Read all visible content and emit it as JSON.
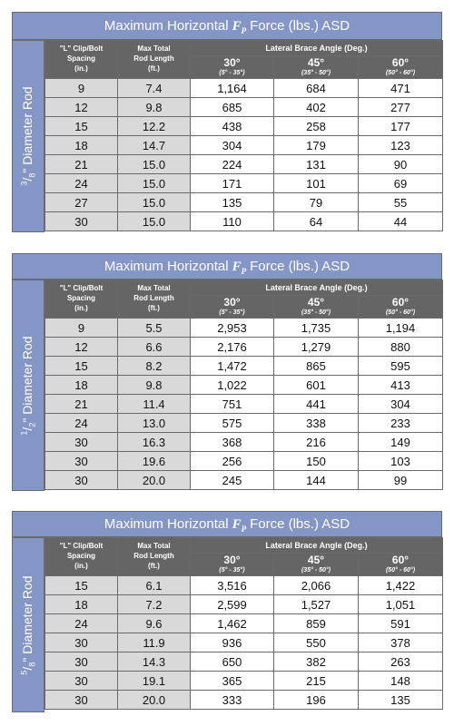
{
  "tables": [
    {
      "title_prefix": "Maximum Horizontal",
      "force_symbol": "F",
      "force_subscript": "P",
      "title_suffix": "Force (lbs.) ASD",
      "diameter_num": "3",
      "diameter_den": "8",
      "diameter_label": "\" Diameter Rod",
      "headers": {
        "spacing": [
          "\"L\" Clip/Bolt",
          "Spacing",
          "(in.)"
        ],
        "rod_length": [
          "Max Total",
          "Rod Length",
          "(ft.)"
        ],
        "lateral": "Lateral Brace Angle (Deg.)",
        "angles": [
          {
            "deg": "30°",
            "range": "(5° - 35°)"
          },
          {
            "deg": "45°",
            "range": "(35° - 50°)"
          },
          {
            "deg": "60°",
            "range": "(50° - 60°)"
          }
        ]
      },
      "rows": [
        [
          "9",
          "7.4",
          "1,164",
          "684",
          "471"
        ],
        [
          "12",
          "9.8",
          "685",
          "402",
          "277"
        ],
        [
          "15",
          "12.2",
          "438",
          "258",
          "177"
        ],
        [
          "18",
          "14.7",
          "304",
          "179",
          "123"
        ],
        [
          "21",
          "15.0",
          "224",
          "131",
          "90"
        ],
        [
          "24",
          "15.0",
          "171",
          "101",
          "69"
        ],
        [
          "27",
          "15.0",
          "135",
          "79",
          "55"
        ],
        [
          "30",
          "15.0",
          "110",
          "64",
          "44"
        ]
      ]
    },
    {
      "title_prefix": "Maximum Horizontal",
      "force_symbol": "F",
      "force_subscript": "P",
      "title_suffix": "Force (lbs.) ASD",
      "diameter_num": "1",
      "diameter_den": "2",
      "diameter_label": "\" Diameter Rod",
      "headers": {
        "spacing": [
          "\"L\" Clip/Bolt",
          "Spacing",
          "(in.)"
        ],
        "rod_length": [
          "Max Total",
          "Rod Length",
          "(ft.)"
        ],
        "lateral": "Lateral Brace Angle (Deg.)",
        "angles": [
          {
            "deg": "30°",
            "range": "(5° - 35°)"
          },
          {
            "deg": "45°",
            "range": "(35° - 50°)"
          },
          {
            "deg": "60°",
            "range": "(50° - 60°)"
          }
        ]
      },
      "rows": [
        [
          "9",
          "5.5",
          "2,953",
          "1,735",
          "1,194"
        ],
        [
          "12",
          "6.6",
          "2,176",
          "1,279",
          "880"
        ],
        [
          "15",
          "8.2",
          "1,472",
          "865",
          "595"
        ],
        [
          "18",
          "9.8",
          "1,022",
          "601",
          "413"
        ],
        [
          "21",
          "11.4",
          "751",
          "441",
          "304"
        ],
        [
          "24",
          "13.0",
          "575",
          "338",
          "233"
        ],
        [
          "30",
          "16.3",
          "368",
          "216",
          "149"
        ],
        [
          "30",
          "19.6",
          "256",
          "150",
          "103"
        ],
        [
          "30",
          "20.0",
          "245",
          "144",
          "99"
        ]
      ]
    },
    {
      "title_prefix": "Maximum Horizontal",
      "force_symbol": "F",
      "force_subscript": "P",
      "title_suffix": "Force (lbs.) ASD",
      "diameter_num": "5",
      "diameter_den": "8",
      "diameter_label": "\" Diameter Rod",
      "headers": {
        "spacing": [
          "\"L\" Clip/Bolt",
          "Spacing",
          "(in.)"
        ],
        "rod_length": [
          "Max Total",
          "Rod Length",
          "(ft.)"
        ],
        "lateral": "Lateral Brace Angle (Deg.)",
        "angles": [
          {
            "deg": "30°",
            "range": "(5° - 35°)"
          },
          {
            "deg": "45°",
            "range": "(35° - 50°)"
          },
          {
            "deg": "60°",
            "range": "(50° - 60°)"
          }
        ]
      },
      "rows": [
        [
          "15",
          "6.1",
          "3,516",
          "2,066",
          "1,422"
        ],
        [
          "18",
          "7.2",
          "2,599",
          "1,527",
          "1,051"
        ],
        [
          "24",
          "9.6",
          "1,462",
          "859",
          "591"
        ],
        [
          "30",
          "11.9",
          "936",
          "550",
          "378"
        ],
        [
          "30",
          "14.3",
          "650",
          "382",
          "263"
        ],
        [
          "30",
          "19.1",
          "365",
          "215",
          "148"
        ],
        [
          "30",
          "20.0",
          "333",
          "196",
          "135"
        ]
      ]
    }
  ]
}
